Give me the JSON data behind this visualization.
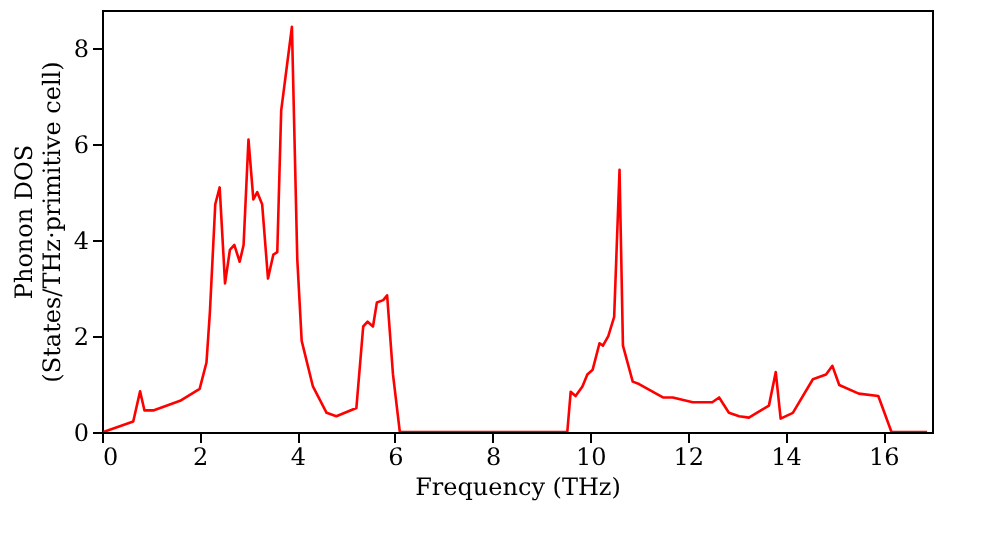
{
  "chart_data": {
    "type": "line",
    "xlabel": "Frequency (THz)",
    "ylabel": "Phonon DOS\n(States/THz·primitive cell)",
    "xlim": [
      0,
      17
    ],
    "ylim": [
      0,
      8.8
    ],
    "xticks": [
      0,
      2,
      4,
      6,
      8,
      10,
      12,
      14,
      16
    ],
    "yticks": [
      0,
      2,
      4,
      6,
      8
    ],
    "grid": false,
    "legend": false,
    "marker": "none",
    "line_style": "solid",
    "series": [
      {
        "color": "#ff0000",
        "x": [
          0.03,
          0.64,
          0.78,
          0.87,
          1.05,
          1.6,
          2.0,
          2.14,
          2.21,
          2.32,
          2.41,
          2.52,
          2.62,
          2.71,
          2.82,
          2.9,
          3.0,
          3.1,
          3.18,
          3.28,
          3.4,
          3.51,
          3.59,
          3.67,
          3.89,
          4.0,
          4.09,
          4.32,
          4.6,
          4.8,
          5.21,
          5.35,
          5.44,
          5.55,
          5.63,
          5.76,
          5.84,
          5.96,
          6.1,
          9.53,
          9.6,
          9.7,
          9.84,
          9.94,
          10.05,
          10.19,
          10.26,
          10.37,
          10.49,
          10.6,
          10.67,
          10.87,
          11.0,
          11.35,
          11.49,
          11.69,
          12.1,
          12.5,
          12.64,
          12.84,
          13.05,
          13.25,
          13.66,
          13.8,
          13.9,
          14.15,
          14.56,
          14.83,
          14.96,
          15.1,
          15.5,
          15.9,
          16.17,
          16.9
        ],
        "values": [
          0,
          0.22,
          0.85,
          0.45,
          0.45,
          0.65,
          0.9,
          1.45,
          2.5,
          4.75,
          5.1,
          3.1,
          3.8,
          3.9,
          3.55,
          3.9,
          6.1,
          4.85,
          5.0,
          4.75,
          3.2,
          3.7,
          3.75,
          6.7,
          8.45,
          3.6,
          1.9,
          0.95,
          0.4,
          0.33,
          0.5,
          2.2,
          2.3,
          2.2,
          2.7,
          2.75,
          2.85,
          1.2,
          0,
          0,
          0.84,
          0.75,
          0.95,
          1.2,
          1.3,
          1.85,
          1.8,
          2.0,
          2.4,
          5.47,
          1.8,
          1.05,
          1.0,
          0.8,
          0.72,
          0.72,
          0.62,
          0.62,
          0.72,
          0.4,
          0.33,
          0.3,
          0.55,
          1.25,
          0.28,
          0.4,
          1.1,
          1.2,
          1.38,
          0.98,
          0.8,
          0.75,
          0,
          0
        ]
      }
    ]
  }
}
